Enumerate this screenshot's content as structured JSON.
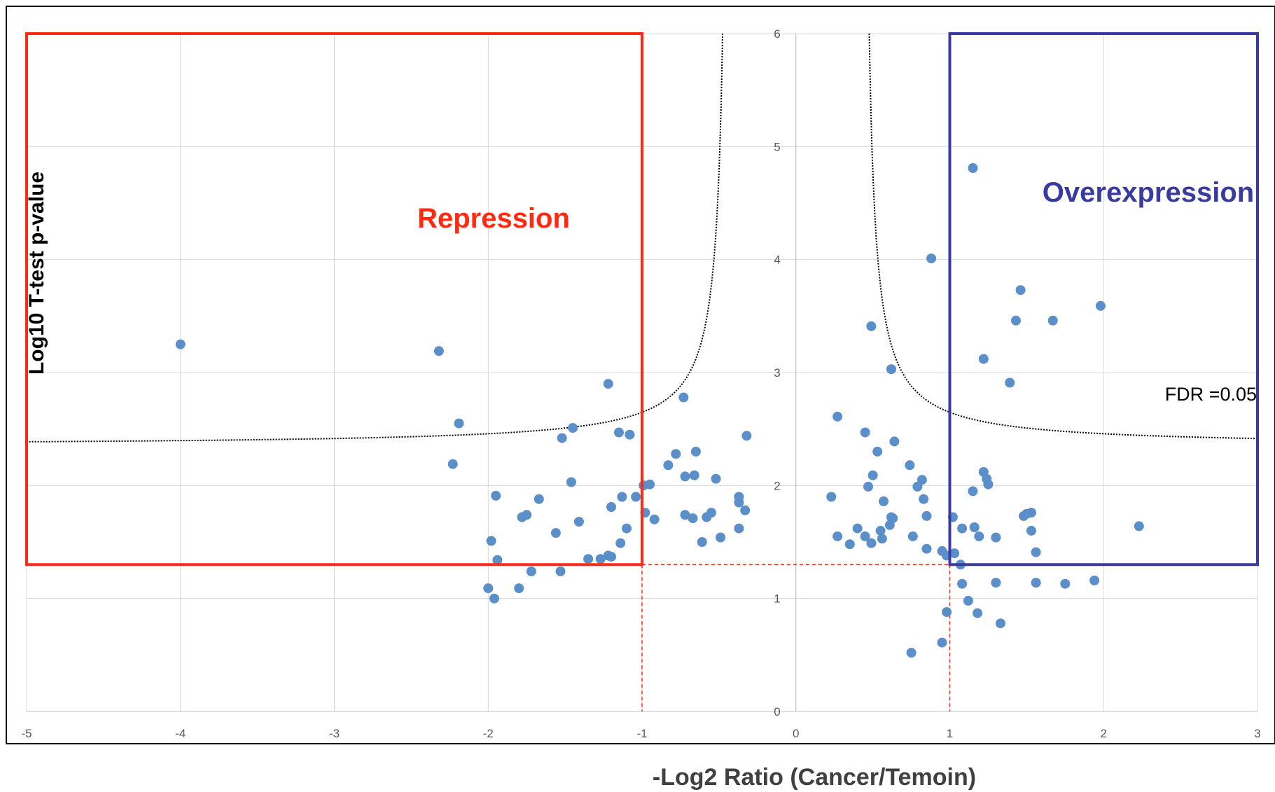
{
  "chart_data": {
    "type": "scatter",
    "title": "",
    "xlabel": "-Log2 Ratio (Cancer/Temoin)",
    "ylabel": "Log10 T-test p-value",
    "xlim": [
      -5,
      3
    ],
    "ylim": [
      0,
      6
    ],
    "grid": true,
    "x_ticks": [
      -5,
      -4,
      -3,
      -2,
      -1,
      0,
      1,
      2,
      3
    ],
    "y_ticks": [
      0,
      1,
      2,
      3,
      4,
      5,
      6
    ],
    "marker_color": "#5b8fc9",
    "fold_change_threshold": 1,
    "p_value_threshold_log10": 1.3,
    "fdr_label": "FDR =0.05",
    "fdr_curve_color": "#000000",
    "repression": {
      "label": "Repression",
      "color": "#ff2a12",
      "x_range": [
        -5,
        -1
      ],
      "y_range": [
        1.3,
        6
      ]
    },
    "overexpression": {
      "label": "Overexpression",
      "color": "#3a3ba0",
      "x_range": [
        1,
        3
      ],
      "y_range": [
        1.3,
        6
      ]
    },
    "series": [
      {
        "values": [
          [
            -4.0,
            3.25
          ],
          [
            -2.32,
            3.19
          ],
          [
            -2.19,
            2.55
          ],
          [
            -2.23,
            2.19
          ],
          [
            -1.22,
            2.9
          ],
          [
            -1.15,
            2.47
          ],
          [
            -1.08,
            2.45
          ],
          [
            -1.45,
            2.51
          ],
          [
            -1.52,
            2.42
          ],
          [
            -0.73,
            2.78
          ],
          [
            -0.32,
            2.44
          ],
          [
            -1.46,
            2.03
          ],
          [
            -1.04,
            1.9
          ],
          [
            -1.13,
            1.9
          ],
          [
            -1.95,
            1.91
          ],
          [
            -1.67,
            1.88
          ],
          [
            -1.75,
            1.74
          ],
          [
            -1.78,
            1.72
          ],
          [
            -1.2,
            1.81
          ],
          [
            -1.56,
            1.58
          ],
          [
            -1.41,
            1.68
          ],
          [
            -1.1,
            1.62
          ],
          [
            -1.14,
            1.49
          ],
          [
            -1.98,
            1.51
          ],
          [
            -1.94,
            1.34
          ],
          [
            -2.0,
            1.09
          ],
          [
            -1.96,
            1.0
          ],
          [
            -1.8,
            1.09
          ],
          [
            -1.72,
            1.24
          ],
          [
            -1.53,
            1.24
          ],
          [
            -1.35,
            1.35
          ],
          [
            -1.22,
            1.38
          ],
          [
            -1.27,
            1.35
          ],
          [
            -1.2,
            1.37
          ],
          [
            -0.99,
            2.0
          ],
          [
            -0.95,
            2.01
          ],
          [
            -0.83,
            2.18
          ],
          [
            -0.78,
            2.28
          ],
          [
            -0.65,
            2.3
          ],
          [
            -0.66,
            2.09
          ],
          [
            -0.72,
            2.08
          ],
          [
            -0.52,
            2.06
          ],
          [
            -0.37,
            1.9
          ],
          [
            -0.37,
            1.85
          ],
          [
            -0.72,
            1.74
          ],
          [
            -0.67,
            1.71
          ],
          [
            -0.58,
            1.72
          ],
          [
            -0.55,
            1.76
          ],
          [
            -0.33,
            1.78
          ],
          [
            -0.98,
            1.76
          ],
          [
            -0.92,
            1.7
          ],
          [
            -0.37,
            1.62
          ],
          [
            -0.61,
            1.5
          ],
          [
            -0.49,
            1.54
          ],
          [
            1.15,
            4.81
          ],
          [
            0.88,
            4.01
          ],
          [
            1.46,
            3.73
          ],
          [
            1.67,
            3.46
          ],
          [
            1.43,
            3.46
          ],
          [
            1.98,
            3.59
          ],
          [
            1.22,
            3.12
          ],
          [
            1.39,
            2.91
          ],
          [
            0.49,
            3.41
          ],
          [
            0.62,
            3.03
          ],
          [
            0.27,
            2.61
          ],
          [
            0.45,
            2.47
          ],
          [
            0.64,
            2.39
          ],
          [
            0.53,
            2.3
          ],
          [
            0.74,
            2.18
          ],
          [
            0.82,
            2.05
          ],
          [
            0.5,
            2.09
          ],
          [
            0.47,
            1.99
          ],
          [
            0.79,
            1.99
          ],
          [
            0.83,
            1.88
          ],
          [
            0.23,
            1.9
          ],
          [
            0.57,
            1.86
          ],
          [
            0.62,
            1.72
          ],
          [
            0.63,
            1.71
          ],
          [
            0.85,
            1.73
          ],
          [
            1.15,
            1.95
          ],
          [
            1.24,
            2.06
          ],
          [
            1.22,
            2.12
          ],
          [
            1.25,
            2.01
          ],
          [
            1.02,
            1.72
          ],
          [
            1.08,
            1.62
          ],
          [
            1.16,
            1.63
          ],
          [
            1.19,
            1.55
          ],
          [
            1.3,
            1.54
          ],
          [
            1.5,
            1.75
          ],
          [
            1.53,
            1.76
          ],
          [
            1.48,
            1.73
          ],
          [
            1.53,
            1.6
          ],
          [
            1.56,
            1.41
          ],
          [
            2.23,
            1.64
          ],
          [
            1.56,
            1.14
          ],
          [
            1.75,
            1.13
          ],
          [
            1.94,
            1.16
          ],
          [
            1.3,
            1.14
          ],
          [
            1.33,
            0.78
          ],
          [
            1.12,
            0.98
          ],
          [
            1.18,
            0.87
          ],
          [
            1.08,
            1.13
          ],
          [
            1.03,
            1.4
          ],
          [
            1.07,
            1.3
          ],
          [
            0.4,
            1.62
          ],
          [
            0.45,
            1.55
          ],
          [
            0.55,
            1.6
          ],
          [
            0.27,
            1.55
          ],
          [
            0.76,
            1.55
          ],
          [
            0.61,
            1.65
          ],
          [
            0.35,
            1.48
          ],
          [
            0.49,
            1.49
          ],
          [
            0.56,
            1.53
          ],
          [
            0.85,
            1.44
          ],
          [
            0.95,
            1.42
          ],
          [
            0.98,
            1.38
          ],
          [
            0.98,
            0.88
          ],
          [
            0.95,
            0.61
          ],
          [
            0.75,
            0.52
          ]
        ]
      }
    ]
  }
}
